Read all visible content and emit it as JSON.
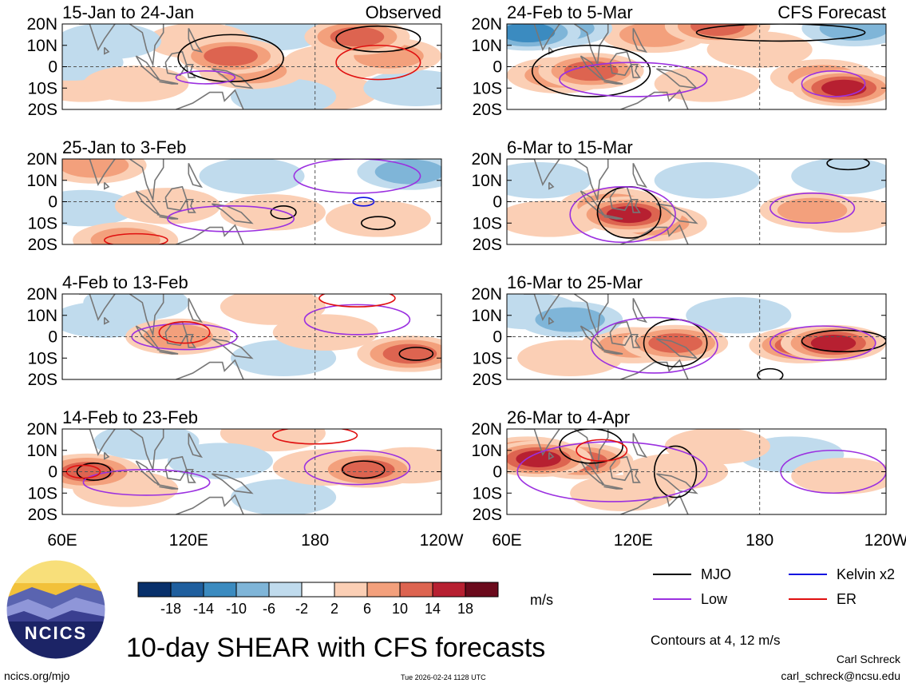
{
  "chart_data": {
    "type": "heatmap",
    "title": "10-day SHEAR with CFS forecasts",
    "colorbar": {
      "ticks": [
        "-18",
        "-14",
        "-10",
        "-6",
        "-2",
        "2",
        "6",
        "10",
        "14",
        "18"
      ],
      "colors": [
        "#08306b",
        "#1f5f9e",
        "#3b8bc0",
        "#7fb5d8",
        "#c0dbed",
        "#ffffff",
        "#fbcfb5",
        "#f3a07c",
        "#dd6450",
        "#b72031",
        "#6b0a1c"
      ],
      "units": "m/s"
    },
    "x_ticks": [
      "60E",
      "120E",
      "180",
      "120W"
    ],
    "y_ticks": [
      "20N",
      "10N",
      "0",
      "10S",
      "20S"
    ],
    "column_headers": {
      "left": "Observed",
      "right": "CFS Forecast"
    },
    "panels": [
      {
        "title": "15-Jan to 24-Jan",
        "tag": "Observed",
        "column": 0,
        "row": 0,
        "cells": [
          {
            "lon": 82,
            "lat": 12,
            "v": -7
          },
          {
            "lon": 64,
            "lat": 2,
            "v": -5
          },
          {
            "lon": 140,
            "lat": 5,
            "v": 12
          },
          {
            "lon": 150,
            "lat": -2,
            "v": 9
          },
          {
            "lon": 125,
            "lat": 12,
            "v": 6
          },
          {
            "lon": 95,
            "lat": -8,
            "v": 5
          },
          {
            "lon": 70,
            "lat": -8,
            "v": 4
          },
          {
            "lon": 200,
            "lat": 14,
            "v": 12
          },
          {
            "lon": 215,
            "lat": 5,
            "v": 8
          },
          {
            "lon": 190,
            "lat": 2,
            "v": 6
          },
          {
            "lon": 228,
            "lat": -10,
            "v": -5
          },
          {
            "lon": 165,
            "lat": -14,
            "v": -5
          },
          {
            "lon": 185,
            "lat": -12,
            "v": 4
          },
          {
            "lon": 160,
            "lat": 16,
            "v": -4
          }
        ],
        "contours": [
          {
            "kind": "MJO",
            "lon": 140,
            "lat": 4,
            "rx": 25,
            "ry": 11
          },
          {
            "kind": "MJO",
            "lon": 210,
            "lat": 13,
            "rx": 20,
            "ry": 6
          },
          {
            "kind": "Low",
            "lon": 128,
            "lat": -5,
            "rx": 14,
            "ry": 3
          },
          {
            "kind": "ER",
            "lon": 210,
            "lat": 2,
            "rx": 20,
            "ry": 8
          }
        ]
      },
      {
        "title": "25-Jan to 3-Feb",
        "column": 0,
        "row": 1,
        "cells": [
          {
            "lon": 75,
            "lat": 17,
            "v": 10
          },
          {
            "lon": 225,
            "lat": 14,
            "v": -8
          },
          {
            "lon": 110,
            "lat": -2,
            "v": 4
          },
          {
            "lon": 160,
            "lat": -5,
            "v": 6
          },
          {
            "lon": 210,
            "lat": -8,
            "v": 5
          },
          {
            "lon": 90,
            "lat": -18,
            "v": 9
          },
          {
            "lon": 150,
            "lat": 12,
            "v": -4
          },
          {
            "lon": 70,
            "lat": -3,
            "v": -3
          }
        ],
        "contours": [
          {
            "kind": "MJO",
            "lon": 165,
            "lat": -5,
            "rx": 6,
            "ry": 3
          },
          {
            "kind": "MJO",
            "lon": 210,
            "lat": -10,
            "rx": 8,
            "ry": 3
          },
          {
            "kind": "Low",
            "lon": 140,
            "lat": -8,
            "rx": 30,
            "ry": 6
          },
          {
            "kind": "Low",
            "lon": 200,
            "lat": 12,
            "rx": 30,
            "ry": 8
          },
          {
            "kind": "Kelvin x2",
            "lon": 203,
            "lat": 0,
            "rx": 5,
            "ry": 2
          },
          {
            "kind": "ER",
            "lon": 95,
            "lat": -18,
            "rx": 15,
            "ry": 3
          }
        ]
      },
      {
        "title": "4-Feb to 13-Feb",
        "column": 0,
        "row": 2,
        "cells": [
          {
            "lon": 115,
            "lat": 0,
            "v": 8
          },
          {
            "lon": 185,
            "lat": 2,
            "v": 6
          },
          {
            "lon": 225,
            "lat": -8,
            "v": 12
          },
          {
            "lon": 160,
            "lat": 14,
            "v": 4
          },
          {
            "lon": 80,
            "lat": 8,
            "v": -4
          },
          {
            "lon": 95,
            "lat": 16,
            "v": -5
          },
          {
            "lon": 165,
            "lat": -10,
            "v": -3
          }
        ],
        "contours": [
          {
            "kind": "MJO",
            "lon": 228,
            "lat": -8,
            "rx": 8,
            "ry": 3
          },
          {
            "kind": "Low",
            "lon": 118,
            "lat": 0,
            "rx": 25,
            "ry": 6
          },
          {
            "kind": "Low",
            "lon": 200,
            "lat": 8,
            "rx": 25,
            "ry": 7
          },
          {
            "kind": "ER",
            "lon": 118,
            "lat": 2,
            "rx": 12,
            "ry": 5
          },
          {
            "kind": "ER",
            "lon": 200,
            "lat": 18,
            "rx": 18,
            "ry": 4
          }
        ]
      },
      {
        "title": "14-Feb to 23-Feb",
        "column": 0,
        "row": 3,
        "cells": [
          {
            "lon": 72,
            "lat": 0,
            "v": 12
          },
          {
            "lon": 205,
            "lat": 1,
            "v": 14
          },
          {
            "lon": 185,
            "lat": 2,
            "v": 7
          },
          {
            "lon": 225,
            "lat": 3,
            "v": 5
          },
          {
            "lon": 90,
            "lat": -8,
            "v": 5
          },
          {
            "lon": 135,
            "lat": 5,
            "v": -5
          },
          {
            "lon": 100,
            "lat": 14,
            "v": -4
          },
          {
            "lon": 165,
            "lat": -12,
            "v": -3
          },
          {
            "lon": 160,
            "lat": 18,
            "v": 4
          }
        ],
        "contours": [
          {
            "kind": "MJO",
            "lon": 75,
            "lat": 0,
            "rx": 8,
            "ry": 4
          },
          {
            "kind": "MJO",
            "lon": 203,
            "lat": 1,
            "rx": 10,
            "ry": 4
          },
          {
            "kind": "Low",
            "lon": 200,
            "lat": 2,
            "rx": 25,
            "ry": 8
          },
          {
            "kind": "Low",
            "lon": 100,
            "lat": -5,
            "rx": 30,
            "ry": 6
          },
          {
            "kind": "ER",
            "lon": 70,
            "lat": 0,
            "rx": 8,
            "ry": 3
          },
          {
            "kind": "ER",
            "lon": 180,
            "lat": 17,
            "rx": 20,
            "ry": 4
          }
        ]
      },
      {
        "title": "24-Feb to 5-Mar",
        "tag": "CFS Forecast",
        "column": 1,
        "row": 0,
        "cells": [
          {
            "lon": 100,
            "lat": -2,
            "v": 12
          },
          {
            "lon": 85,
            "lat": -4,
            "v": 10
          },
          {
            "lon": 160,
            "lat": 19,
            "v": 14
          },
          {
            "lon": 130,
            "lat": 15,
            "v": 8
          },
          {
            "lon": 220,
            "lat": -10,
            "v": 16
          },
          {
            "lon": 210,
            "lat": -5,
            "v": 9
          },
          {
            "lon": 70,
            "lat": 16,
            "v": -12
          },
          {
            "lon": 85,
            "lat": 18,
            "v": -9
          },
          {
            "lon": 225,
            "lat": 18,
            "v": -8
          },
          {
            "lon": 155,
            "lat": -8,
            "v": 5
          },
          {
            "lon": 180,
            "lat": 8,
            "v": 4
          }
        ],
        "contours": [
          {
            "kind": "MJO",
            "lon": 100,
            "lat": -2,
            "rx": 28,
            "ry": 12
          },
          {
            "kind": "MJO",
            "lon": 190,
            "lat": 16,
            "rx": 40,
            "ry": 4
          },
          {
            "kind": "Low",
            "lon": 215,
            "lat": -8,
            "rx": 15,
            "ry": 6
          },
          {
            "kind": "Low",
            "lon": 120,
            "lat": -6,
            "rx": 35,
            "ry": 8
          }
        ]
      },
      {
        "title": "6-Mar to 15-Mar",
        "column": 1,
        "row": 1,
        "cells": [
          {
            "lon": 118,
            "lat": -6,
            "v": 16
          },
          {
            "lon": 110,
            "lat": -2,
            "v": 10
          },
          {
            "lon": 130,
            "lat": -10,
            "v": 10
          },
          {
            "lon": 205,
            "lat": -4,
            "v": 8
          },
          {
            "lon": 220,
            "lat": -6,
            "v": 5
          },
          {
            "lon": 80,
            "lat": -8,
            "v": 5
          },
          {
            "lon": 75,
            "lat": 10,
            "v": -7
          },
          {
            "lon": 155,
            "lat": 10,
            "v": -4
          },
          {
            "lon": 220,
            "lat": 12,
            "v": -4
          }
        ],
        "contours": [
          {
            "kind": "MJO",
            "lon": 118,
            "lat": -5,
            "rx": 15,
            "ry": 12
          },
          {
            "kind": "MJO",
            "lon": 222,
            "lat": 18,
            "rx": 10,
            "ry": 3
          },
          {
            "kind": "Low",
            "lon": 115,
            "lat": -6,
            "rx": 25,
            "ry": 13
          },
          {
            "kind": "Low",
            "lon": 205,
            "lat": -3,
            "rx": 20,
            "ry": 7
          }
        ]
      },
      {
        "title": "16-Mar to 25-Mar",
        "column": 1,
        "row": 2,
        "cells": [
          {
            "lon": 140,
            "lat": -3,
            "v": 12
          },
          {
            "lon": 120,
            "lat": -4,
            "v": 8
          },
          {
            "lon": 215,
            "lat": -3,
            "v": 18
          },
          {
            "lon": 200,
            "lat": -4,
            "v": 12
          },
          {
            "lon": 90,
            "lat": 8,
            "v": -8
          },
          {
            "lon": 70,
            "lat": 12,
            "v": -5
          },
          {
            "lon": 170,
            "lat": 10,
            "v": -4
          },
          {
            "lon": 90,
            "lat": -10,
            "v": 4
          }
        ],
        "contours": [
          {
            "kind": "MJO",
            "lon": 140,
            "lat": -3,
            "rx": 15,
            "ry": 11
          },
          {
            "kind": "MJO",
            "lon": 220,
            "lat": -2,
            "rx": 20,
            "ry": 5
          },
          {
            "kind": "MJO",
            "lon": 185,
            "lat": -18,
            "rx": 6,
            "ry": 3
          },
          {
            "kind": "Low",
            "lon": 130,
            "lat": -4,
            "rx": 30,
            "ry": 13
          },
          {
            "kind": "Low",
            "lon": 210,
            "lat": -3,
            "rx": 25,
            "ry": 8
          }
        ]
      },
      {
        "title": "26-Mar to 4-Apr",
        "column": 1,
        "row": 3,
        "cells": [
          {
            "lon": 75,
            "lat": 6,
            "v": 16
          },
          {
            "lon": 95,
            "lat": 5,
            "v": 12
          },
          {
            "lon": 70,
            "lat": 8,
            "v": 12
          },
          {
            "lon": 140,
            "lat": 0,
            "v": 6
          },
          {
            "lon": 115,
            "lat": -10,
            "v": 5
          },
          {
            "lon": 220,
            "lat": -2,
            "v": 6
          },
          {
            "lon": 195,
            "lat": 8,
            "v": -3
          },
          {
            "lon": 160,
            "lat": 12,
            "v": 4
          }
        ],
        "contours": [
          {
            "kind": "MJO",
            "lon": 140,
            "lat": 0,
            "rx": 10,
            "ry": 12
          },
          {
            "kind": "MJO",
            "lon": 100,
            "lat": 12,
            "rx": 15,
            "ry": 8
          },
          {
            "kind": "Low",
            "lon": 110,
            "lat": 0,
            "rx": 45,
            "ry": 14
          },
          {
            "kind": "Low",
            "lon": 215,
            "lat": 0,
            "rx": 25,
            "ry": 10
          },
          {
            "kind": "ER",
            "lon": 105,
            "lat": 10,
            "rx": 12,
            "ry": 5
          }
        ]
      }
    ]
  },
  "legend": {
    "items": [
      {
        "label": "MJO",
        "color": "#000000"
      },
      {
        "label": "Low",
        "color": "#9b30e0"
      },
      {
        "label": "Kelvin x2",
        "color": "#1010e0"
      },
      {
        "label": "ER",
        "color": "#e01010"
      }
    ],
    "contours_note": "Contours at 4, 12 m/s"
  },
  "logo": {
    "text": "NCICS"
  },
  "footer": {
    "url": "ncics.org/mjo",
    "timestamp": "Tue 2026-02-24 1128 UTC",
    "author": "Carl Schreck",
    "email": "carl_schreck@ncsu.edu"
  }
}
